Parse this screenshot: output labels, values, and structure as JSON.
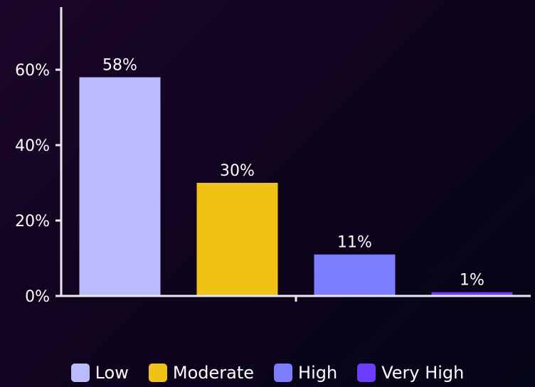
{
  "chart_data": {
    "type": "bar",
    "title": "",
    "xlabel": "",
    "ylabel": "",
    "categories": [
      "Low",
      "Moderate",
      "High",
      "Very High"
    ],
    "values": [
      58,
      30,
      11,
      1
    ],
    "data_labels": [
      "58%",
      "30%",
      "11%",
      "1%"
    ],
    "colors": [
      "#babbff",
      "#f1c216",
      "#7b7dff",
      "#6d3dff"
    ],
    "ylim": [
      0,
      75
    ],
    "yticks": [
      0,
      20,
      40,
      60
    ],
    "ytick_labels": [
      "0%",
      "20%",
      "40%",
      "60%"
    ],
    "grid": false,
    "legend_position": "bottom"
  },
  "legend": {
    "items": [
      {
        "label": "Low",
        "color": "#babbff"
      },
      {
        "label": "Moderate",
        "color": "#f1c216"
      },
      {
        "label": "High",
        "color": "#7b7dff"
      },
      {
        "label": "Very High",
        "color": "#6d3dff"
      }
    ]
  }
}
